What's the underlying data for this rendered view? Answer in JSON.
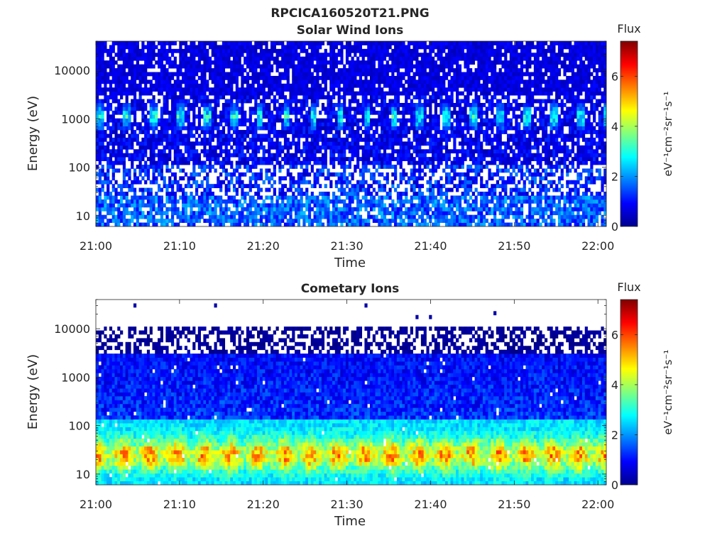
{
  "figure": {
    "title": "RPCICA160520T21.PNG"
  },
  "colorbar": {
    "label": "Flux",
    "unit_label": "eV⁻¹cm⁻²sr⁻¹s⁻¹",
    "ticks": [
      0,
      2,
      4,
      6
    ],
    "range": [
      0,
      7.4
    ],
    "colormap": "jet"
  },
  "chart_data": [
    {
      "type": "heatmap",
      "title": "Solar Wind Ions",
      "xlabel": "Time",
      "ylabel": "Energy (eV)",
      "x_ticks": [
        "21:00",
        "21:10",
        "21:20",
        "21:30",
        "21:40",
        "21:50",
        "22:00"
      ],
      "x_range": [
        "21:00",
        "22:01"
      ],
      "y_ticks": [
        10,
        100,
        1000,
        10000
      ],
      "y_range": [
        6,
        40000
      ],
      "y_scale": "log",
      "z_label": "Flux",
      "z_range": [
        0,
        7.4
      ],
      "features": {
        "background_flux": 0.9,
        "high_energy_band_flux": 0.7,
        "beam_energy_center": 1100,
        "beam_flux_peak": 3.8,
        "beam_period_min": 3.2,
        "beam_first_time": "21:03",
        "low_energy_flux": 1.8
      }
    },
    {
      "type": "heatmap",
      "title": "Cometary Ions",
      "xlabel": "Time",
      "ylabel": "Energy (eV)",
      "x_ticks": [
        "21:00",
        "21:10",
        "21:20",
        "21:30",
        "21:40",
        "21:50",
        "22:00"
      ],
      "x_range": [
        "21:00",
        "22:01"
      ],
      "y_ticks": [
        10,
        100,
        1000,
        10000
      ],
      "y_range": [
        6,
        40000
      ],
      "y_scale": "log",
      "z_label": "Flux",
      "z_range": [
        0,
        7.4
      ],
      "features": {
        "data_upper_energy": 11000,
        "background_flux": 1.0,
        "peak_energy": 25,
        "peak_flux": 5.6,
        "peak_period_min": 3.2,
        "low_energy_flux": 2.6
      }
    }
  ]
}
